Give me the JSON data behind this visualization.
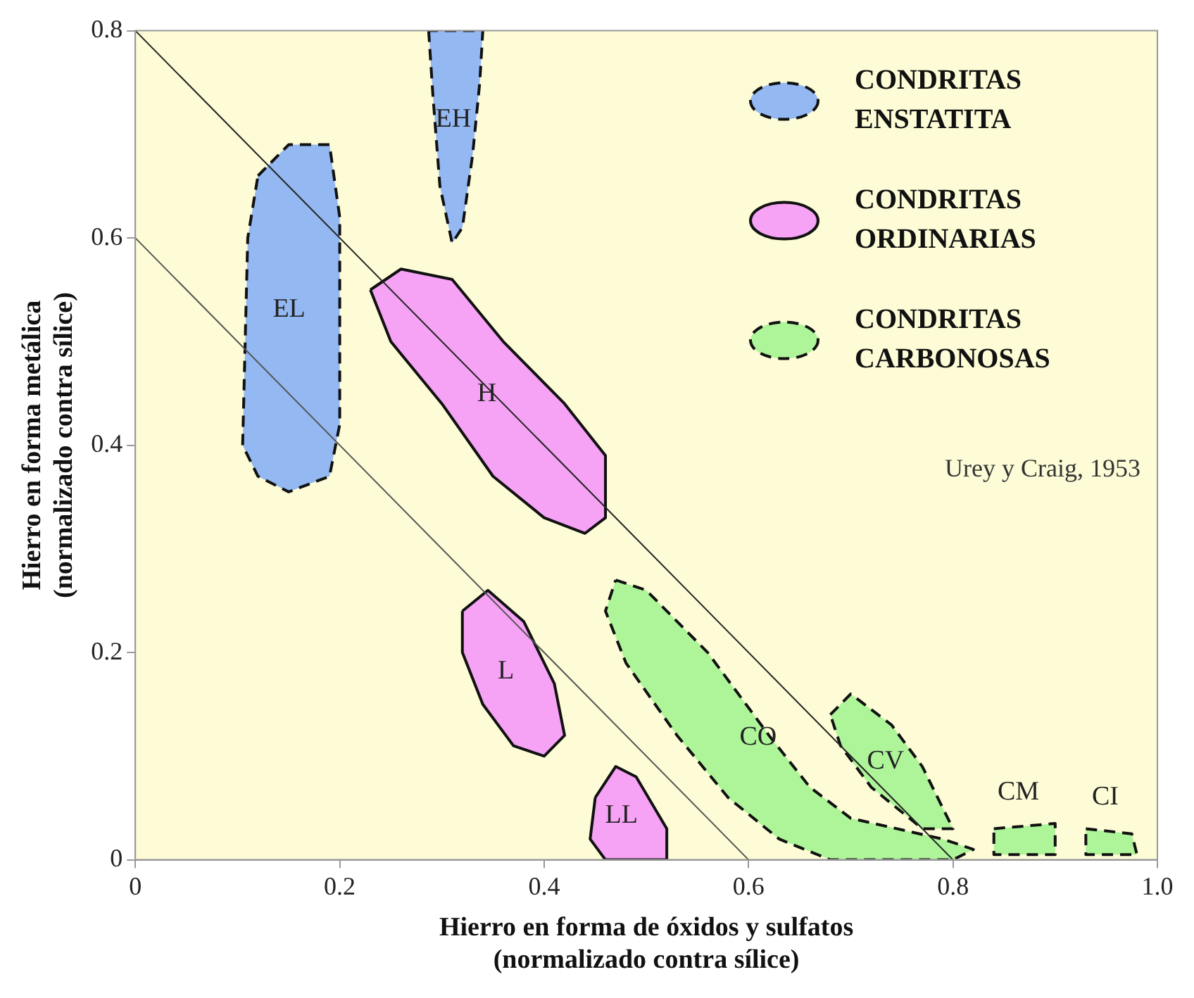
{
  "chart_data": {
    "type": "area",
    "xlabel": "Hierro en forma de óxidos y sulfatos (normalizado contra sílice)",
    "ylabel": "Hierro en forma metálica (normalizado contra sílice)",
    "xlim": [
      0,
      1
    ],
    "ylim": [
      0,
      0.8
    ],
    "xticks": [
      0,
      0.2,
      0.4,
      0.6,
      0.8,
      {
        "value": 1,
        "label": "1.0"
      }
    ],
    "yticks": [
      0,
      0.2,
      0.4,
      0.6,
      0.8
    ],
    "grid": false,
    "legend": "top right",
    "marker": "none",
    "series": [
      {
        "name": "CONDRITAS ENSTATITA",
        "color": "#93b8f2",
        "line_style": "dashed",
        "x": [
          0.287,
          0.291,
          0.298,
          0.31,
          0.32,
          0.33,
          0.337,
          0.34,
          0.287
        ],
        "values": [
          0.8,
          0.74,
          0.65,
          0.595,
          0.61,
          0.68,
          0.75,
          0.8,
          0.8
        ]
      },
      {
        "color": "#93b8f2",
        "line_style": "dashed",
        "x": [
          0.12,
          0.15,
          0.19,
          0.2,
          0.2,
          0.19,
          0.15,
          0.12,
          0.105,
          0.11,
          0.12
        ],
        "values": [
          0.66,
          0.69,
          0.69,
          0.62,
          0.42,
          0.37,
          0.355,
          0.37,
          0.4,
          0.6,
          0.66
        ]
      },
      {
        "name": "CONDRITAS ORDINARIAS",
        "color": "#f6a2f5",
        "line_style": "solid",
        "x": [
          0.23,
          0.26,
          0.31,
          0.36,
          0.42,
          0.46,
          0.46,
          0.44,
          0.4,
          0.35,
          0.3,
          0.25,
          0.23
        ],
        "values": [
          0.55,
          0.57,
          0.56,
          0.5,
          0.44,
          0.39,
          0.33,
          0.315,
          0.33,
          0.37,
          0.44,
          0.5,
          0.55
        ]
      },
      {
        "color": "#f6a2f5",
        "line_style": "solid",
        "x": [
          0.32,
          0.345,
          0.38,
          0.41,
          0.42,
          0.4,
          0.37,
          0.34,
          0.32,
          0.32
        ],
        "values": [
          0.24,
          0.26,
          0.23,
          0.17,
          0.12,
          0.1,
          0.11,
          0.15,
          0.2,
          0.24
        ]
      },
      {
        "color": "#f6a2f5",
        "line_style": "solid",
        "x": [
          0.45,
          0.47,
          0.49,
          0.52,
          0.52,
          0.46,
          0.445,
          0.45
        ],
        "values": [
          0.06,
          0.09,
          0.08,
          0.03,
          0,
          0,
          0.02,
          0.06
        ]
      },
      {
        "name": "CONDRITAS CARBONOSAS",
        "color": "#aef59a",
        "line_style": "dashed",
        "x": [
          0.47,
          0.5,
          0.56,
          0.62,
          0.66,
          0.7,
          0.79,
          0.82,
          0.8,
          0.68,
          0.63,
          0.58,
          0.53,
          0.48,
          0.46,
          0.47
        ],
        "values": [
          0.27,
          0.26,
          0.2,
          0.12,
          0.07,
          0.04,
          0.02,
          0.01,
          0,
          0,
          0.02,
          0.06,
          0.12,
          0.19,
          0.24,
          0.27
        ]
      },
      {
        "color": "#aef59a",
        "line_style": "dashed",
        "x": [
          0.68,
          0.7,
          0.74,
          0.77,
          0.79,
          0.8,
          0.77,
          0.72,
          0.69,
          0.68
        ],
        "values": [
          0.14,
          0.16,
          0.13,
          0.09,
          0.05,
          0.03,
          0.03,
          0.07,
          0.11,
          0.14
        ]
      },
      {
        "color": "#aef59a",
        "line_style": "dashed",
        "x": [
          0.84,
          0.9,
          0.9,
          0.84,
          0.84
        ],
        "values": [
          0.03,
          0.035,
          0.005,
          0.005,
          0.03
        ]
      },
      {
        "color": "#aef59a",
        "line_style": "dashed",
        "x": [
          0.93,
          0.975,
          0.98,
          0.93,
          0.93
        ],
        "values": [
          0.03,
          0.025,
          0.005,
          0.005,
          0.03
        ]
      },
      {
        "type": "line",
        "color": "#222222",
        "line_style": "solid",
        "x": [
          0,
          0.8
        ],
        "values": [
          0.8,
          0
        ]
      },
      {
        "type": "line",
        "color": "#555555",
        "line_style": "solid",
        "x": [
          0,
          0.6
        ],
        "values": [
          0.6,
          0
        ]
      }
    ],
    "annotations": [
      "EH",
      "EL",
      "H",
      "L",
      "LL",
      "CO",
      "CV",
      "CM",
      "CI",
      "Urey y Craig, 1953"
    ]
  }
}
